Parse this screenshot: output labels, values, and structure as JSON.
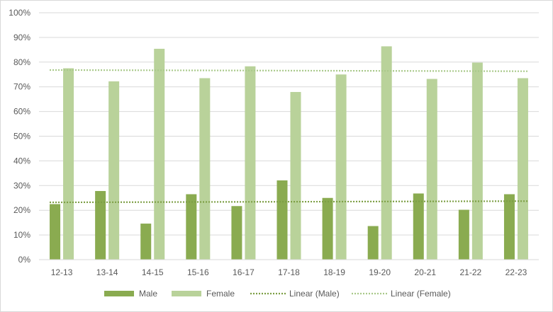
{
  "chart_data": {
    "type": "bar",
    "categories": [
      "12-13",
      "13-14",
      "14-15",
      "15-16",
      "16-17",
      "17-18",
      "18-19",
      "19-20",
      "20-21",
      "21-22",
      "22-23"
    ],
    "series": [
      {
        "name": "Male",
        "color": "#8aab50",
        "values": [
          22.5,
          27.8,
          14.6,
          26.5,
          21.7,
          32.1,
          25.0,
          13.6,
          26.8,
          20.2,
          26.5
        ]
      },
      {
        "name": "Female",
        "color": "#b9d29a",
        "values": [
          77.5,
          72.2,
          85.4,
          73.5,
          78.3,
          67.9,
          75.0,
          86.4,
          73.2,
          79.8,
          73.5
        ]
      }
    ],
    "trendlines": [
      {
        "name": "Linear (Male)",
        "color": "#7d9f45",
        "start": 23.2,
        "end": 23.7
      },
      {
        "name": "Linear (Female)",
        "color": "#a9c98a",
        "start": 76.8,
        "end": 76.3
      }
    ],
    "ylim": [
      0,
      100
    ],
    "yticks": [
      "0%",
      "10%",
      "20%",
      "30%",
      "40%",
      "50%",
      "60%",
      "70%",
      "80%",
      "90%",
      "100%"
    ],
    "grid": true,
    "legend_position": "bottom"
  }
}
